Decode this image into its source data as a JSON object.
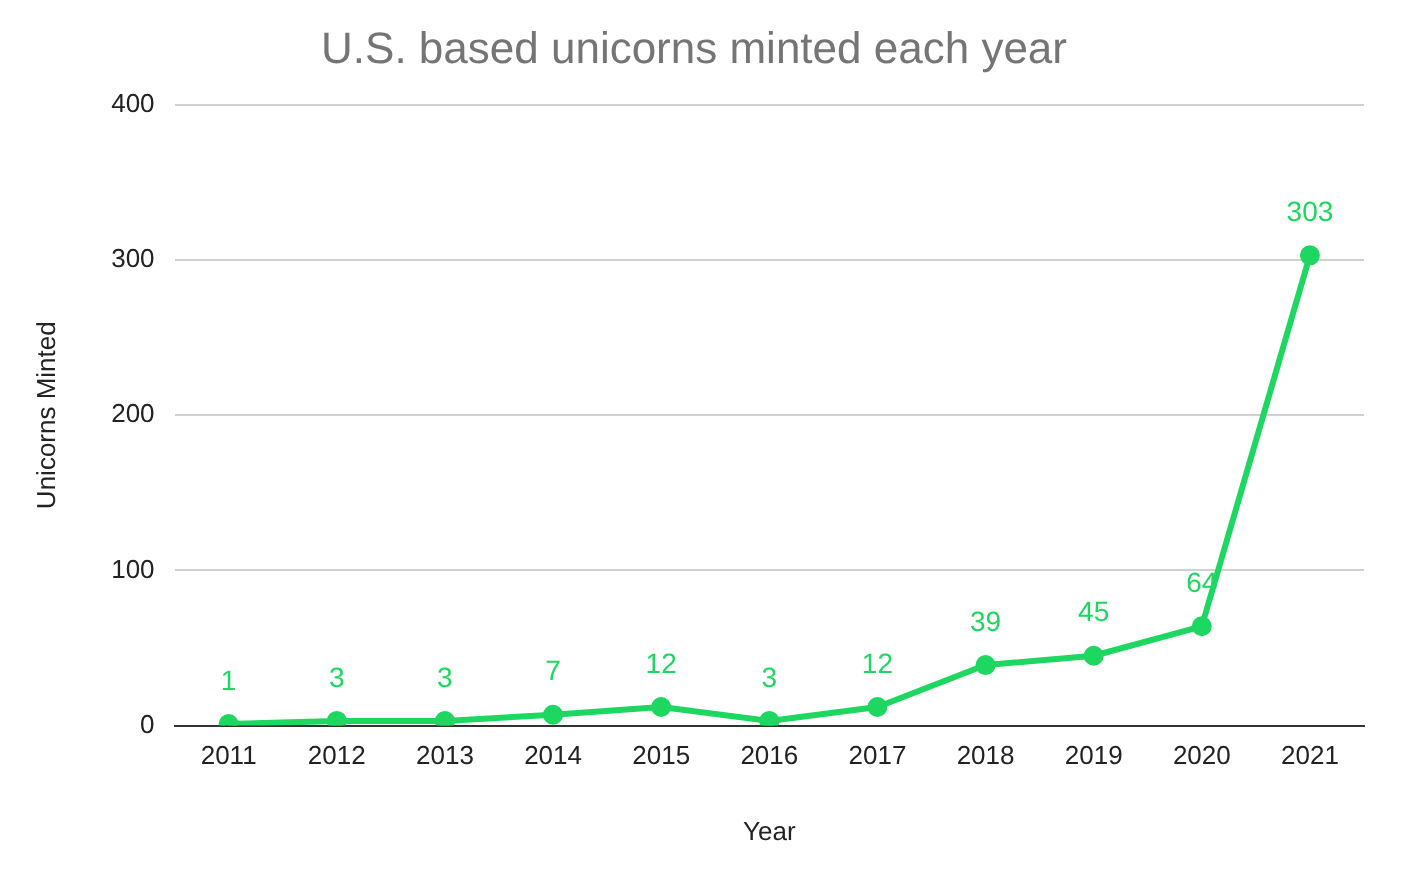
{
  "chart_data": {
    "type": "line",
    "title": "U.S. based unicorns minted each year",
    "xlabel": "Year",
    "ylabel": "Unicorns Minted",
    "categories": [
      "2011",
      "2012",
      "2013",
      "2014",
      "2015",
      "2016",
      "2017",
      "2018",
      "2019",
      "2020",
      "2021"
    ],
    "series": [
      {
        "color": "#1ed760",
        "values": [
          1,
          3,
          3,
          7,
          12,
          3,
          12,
          39,
          45,
          64,
          303
        ]
      }
    ],
    "ylim": [
      0,
      400
    ],
    "yticks": [
      0,
      100,
      200,
      300,
      400
    ],
    "grid": "y",
    "marker": "circle",
    "line_style": "solid",
    "data_labels": true,
    "legend": false
  }
}
